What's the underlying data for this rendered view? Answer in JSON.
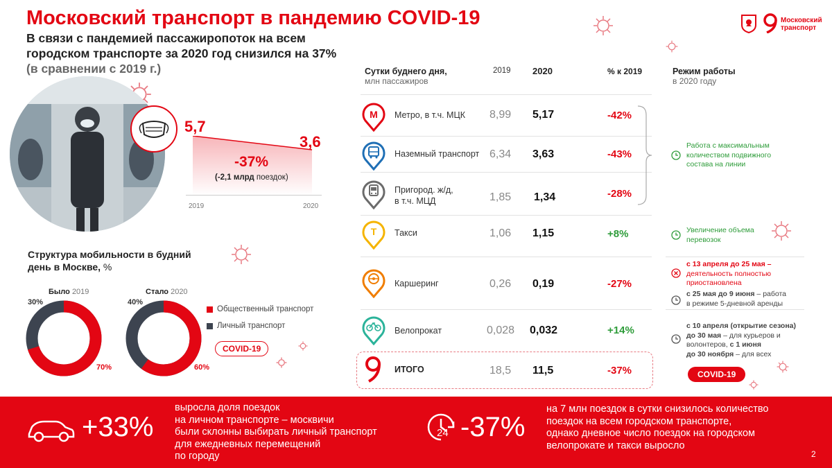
{
  "title": "Московский транспорт в пандемию COVID-19",
  "subtitle_line1": "В связи с пандемией пассажиропоток на всем",
  "subtitle_line2": "городском транспорте за 2020 год снизился на 37%",
  "subtitle_line3": "(в сравнении с 2019 г.)",
  "logo": {
    "line1": "Московский",
    "line2": "транспорт"
  },
  "decline_chart": {
    "start_value": "5,7",
    "end_value": "3,6",
    "change": "-37%",
    "note_bold": "(-2,1 млрд",
    "note_rest": " поездок)",
    "year_start": "2019",
    "year_end": "2020"
  },
  "table": {
    "header_label_line1": "Сутки буднего дня,",
    "header_label_line2": "млн пассажиров",
    "header_2019": "2019",
    "header_2020": "2020",
    "header_pct": "% к 2019",
    "header_mode_line1": "Режим работы",
    "header_mode_line2": "в 2020 году",
    "rows": [
      {
        "label_line1": "Метро, в т.ч.  МЦК",
        "label_line2": "",
        "v2019": "8,99",
        "v2020": "5,17",
        "pct": "-42%",
        "icon": "metro-icon"
      },
      {
        "label_line1": "Наземный транспорт",
        "label_line2": "",
        "v2019": "6,34",
        "v2020": "3,63",
        "pct": "-43%",
        "icon": "bus-icon"
      },
      {
        "label_line1": "Пригород. ж/д,",
        "label_line2": "в т.ч. МЦД",
        "v2019": "1,85",
        "v2020": "1,34",
        "pct": "-28%",
        "icon": "train-icon"
      },
      {
        "label_line1": "Такси",
        "label_line2": "",
        "v2019": "1,06",
        "v2020": "1,15",
        "pct": "+8%",
        "icon": "taxi-icon"
      },
      {
        "label_line1": "Каршеринг",
        "label_line2": "",
        "v2019": "0,26",
        "v2020": "0,19",
        "pct": "-27%",
        "icon": "carsharing-icon"
      },
      {
        "label_line1": "Велопрокат",
        "label_line2": "",
        "v2019": "0,028",
        "v2020": "0,032",
        "pct": "+14%",
        "icon": "bike-icon"
      }
    ],
    "total": {
      "label": "ИТОГО",
      "v2019": "18,5",
      "v2020": "11,5",
      "pct": "-37%"
    }
  },
  "modes": {
    "max_capacity": [
      "Работа с максимальным",
      "количеством подвижного",
      "состава на линии"
    ],
    "taxi": [
      "Увеличение объема",
      "перевозок"
    ],
    "carsharing_suspended": [
      "с 13 апреля до 25 мая –",
      "деятельность полностью",
      "приостановлена"
    ],
    "carsharing_resumed_bold": "с 25 мая до 9 июня",
    "carsharing_resumed_rest": " – работа",
    "carsharing_resumed_line2": "в режиме 5-дневной аренды",
    "bike_line1": "с 10 апреля (открытие сезона)",
    "bike_line2_bold": "до 30 мая",
    "bike_line2_rest": " – для курьеров и",
    "bike_line3_rest": "волонтеров, ",
    "bike_line3_bold": "с 1 июня",
    "bike_line4_bold": "до 30 ноября",
    "bike_line4_rest": " – для всех"
  },
  "structure": {
    "title_line1": "Структура мобильности в будний",
    "title_line2_bold": "день в Москве,",
    "title_line2_rest": " %",
    "before_label": "Было",
    "before_year": "2019",
    "after_label": "Стало",
    "after_year": "2020",
    "before_public": 70,
    "before_private": 30,
    "after_public": 60,
    "after_private": 40,
    "before_public_label": "70%",
    "before_private_label": "30%",
    "after_public_label": "60%",
    "after_private_label": "40%",
    "legend_public": "Общественный транспорт",
    "legend_private": "Личный транспорт",
    "badge": "COVID-19"
  },
  "badge_bottom": "COVID-19",
  "footer": {
    "left_big": "+33%",
    "left_text": [
      "выросла доля поездок",
      "на личном транспорте – москвичи",
      "были склонны выбирать личный транспорт",
      "для ежедневных перемещений",
      "по городу"
    ],
    "right_big": "-37%",
    "right_icon_text": "24",
    "right_text": [
      "на 7 млн поездок в сутки снизилось количество",
      "поездок на всем городском транспорте,",
      "однако дневное число поездок на городском",
      "велопрокате и такси выросло"
    ],
    "page": "2"
  },
  "colors": {
    "accent": "#e30613",
    "dark": "#3d4450",
    "green": "#2e9c3a",
    "yellow": "#f5b400",
    "orange": "#f07d00",
    "teal": "#2bb39a",
    "blue": "#1f6fb5",
    "gray": "#6b6b6b"
  }
}
